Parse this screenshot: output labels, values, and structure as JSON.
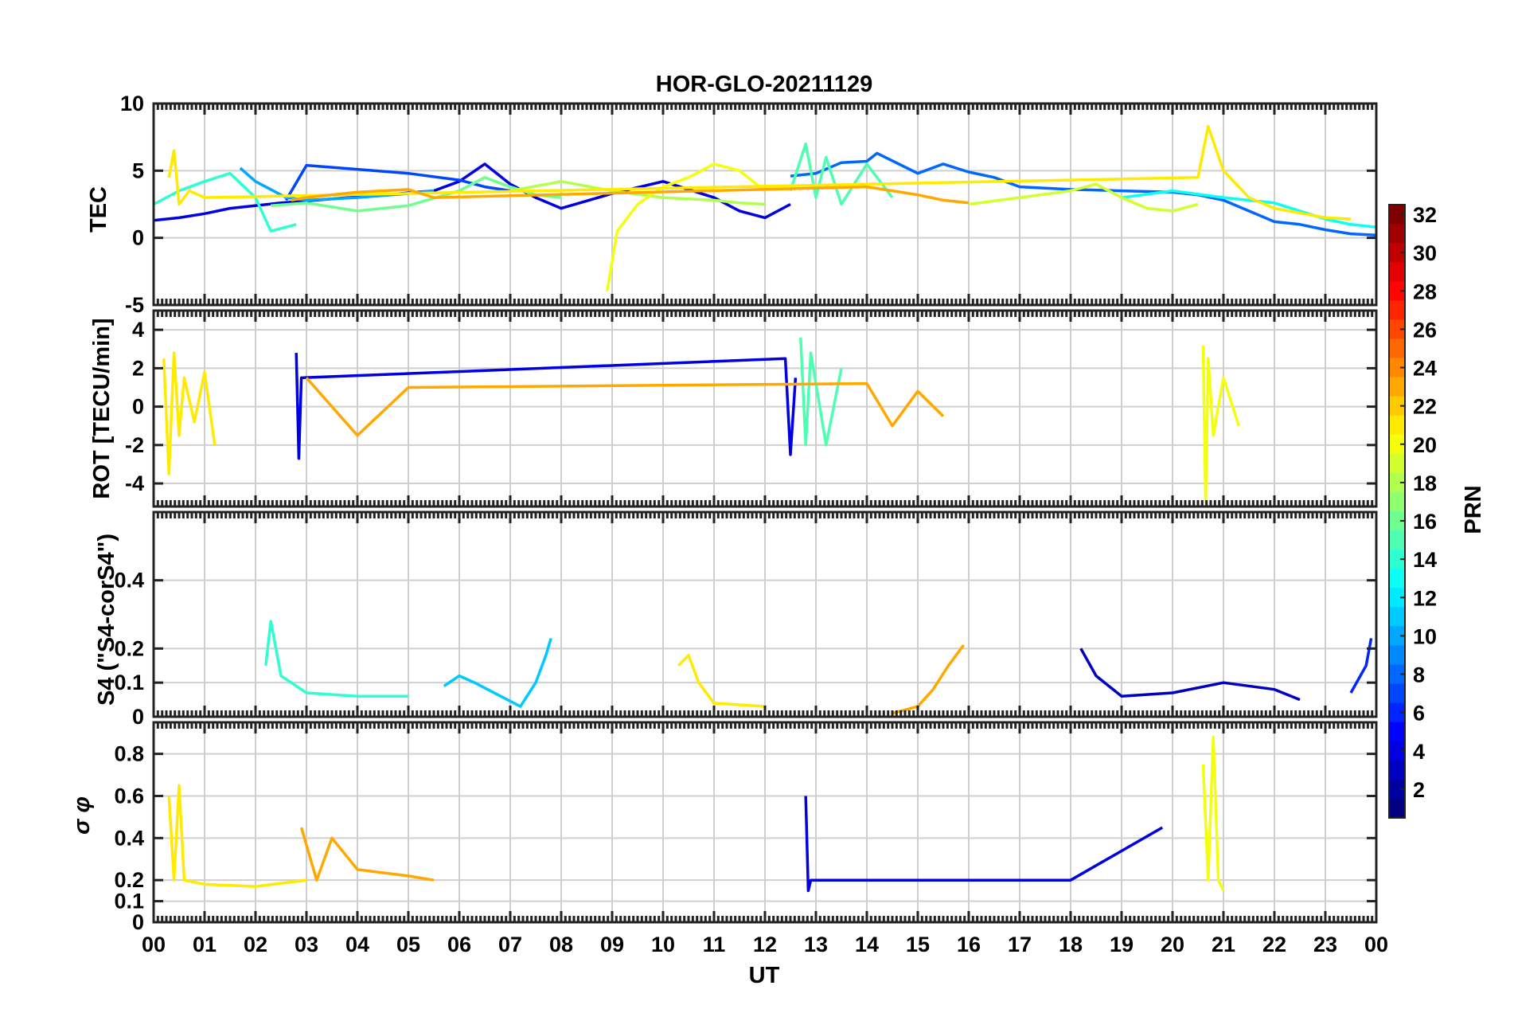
{
  "chart_data": [
    {
      "type": "line",
      "panel": "TEC",
      "title": "HOR-GLO-20211129",
      "ylabel": "TEC",
      "ylim": [
        -5,
        10
      ],
      "yticks": [
        10,
        5,
        0,
        -5
      ],
      "xlim": [
        0,
        24
      ],
      "grid": true,
      "series": [
        {
          "prn": 4,
          "x": [
            0,
            0.5,
            1,
            1.5,
            2.5,
            3.5,
            4.5,
            5.5,
            6,
            6.5,
            7,
            7.5,
            8,
            9,
            10,
            11,
            11.5,
            12,
            12.5
          ],
          "y": [
            1.3,
            1.5,
            1.8,
            2.2,
            2.6,
            2.9,
            3.2,
            3.5,
            4.2,
            5.5,
            4,
            3,
            2.2,
            3.3,
            4.2,
            3,
            2,
            1.5,
            2.5
          ]
        },
        {
          "prn": 7,
          "x": [
            2.6,
            3,
            4,
            5,
            6,
            6.5,
            7
          ],
          "y": [
            2.8,
            5.4,
            5.1,
            4.8,
            4.3,
            3.8,
            3.5
          ]
        },
        {
          "prn": 8,
          "x": [
            12.5,
            13,
            13.5,
            14,
            14.2,
            15,
            15.5,
            16,
            16.5,
            17,
            18,
            19,
            20,
            20.5,
            21,
            21.5,
            22,
            22.5,
            23,
            23.5,
            24
          ],
          "y": [
            4.6,
            4.8,
            5.6,
            5.7,
            6.3,
            4.8,
            5.5,
            4.9,
            4.5,
            3.8,
            3.6,
            3.5,
            3.4,
            3.2,
            2.8,
            2.0,
            1.2,
            1.0,
            0.6,
            0.3,
            0.2
          ]
        },
        {
          "prn": 10,
          "x": [
            1.7,
            2,
            2.6,
            3,
            4,
            5,
            5.5
          ],
          "y": [
            5.2,
            4.2,
            3.0,
            2.8,
            3.0,
            3.3,
            3.5
          ]
        },
        {
          "prn": 14,
          "x": [
            0,
            0.5,
            1,
            1.5,
            2,
            2.3,
            2.8
          ],
          "y": [
            2.5,
            3.5,
            4.2,
            4.8,
            3.0,
            0.5,
            1.0
          ]
        },
        {
          "prn": 13,
          "x": [
            19,
            20,
            21,
            22,
            22.5,
            23,
            23.5,
            24
          ],
          "y": [
            3.0,
            3.5,
            3.0,
            2.6,
            2.0,
            1.4,
            1.0,
            0.8
          ]
        },
        {
          "prn": 15,
          "x": [
            12.5,
            12.8,
            13,
            13.2,
            13.5,
            14,
            14.5
          ],
          "y": [
            3.5,
            7.0,
            3.0,
            6.0,
            2.5,
            5.5,
            3.0
          ]
        },
        {
          "prn": 16,
          "x": [
            2.3,
            3,
            4,
            5,
            6,
            6.5,
            7,
            7.5,
            8
          ],
          "y": [
            2.4,
            2.6,
            2.0,
            2.4,
            3.5,
            4.5,
            3.8,
            3.2,
            3.0
          ]
        },
        {
          "prn": 18,
          "x": [
            7,
            8,
            9,
            10,
            11,
            11.5,
            12
          ],
          "y": [
            3.5,
            4.2,
            3.5,
            3.0,
            2.8,
            2.6,
            2.5
          ]
        },
        {
          "prn": 19,
          "x": [
            16,
            17,
            18,
            18.5,
            19,
            19.5,
            20,
            20.5
          ],
          "y": [
            2.5,
            3.0,
            3.5,
            4.0,
            3.0,
            2.2,
            2.0,
            2.5
          ]
        },
        {
          "prn": 20,
          "x": [
            8.9,
            9.1,
            9.5,
            10,
            10.5,
            11,
            11.5,
            12
          ],
          "y": [
            -4.0,
            0.5,
            2.5,
            3.8,
            4.5,
            5.5,
            5.0,
            3.5
          ]
        },
        {
          "prn": 21,
          "x": [
            0.3,
            0.4,
            0.5,
            0.7,
            1.0,
            20.5,
            20.7,
            21,
            21.5,
            22,
            23,
            23.5
          ],
          "y": [
            4.5,
            6.5,
            2.5,
            3.5,
            3.0,
            4.5,
            8.3,
            5.0,
            3.0,
            2.2,
            1.5,
            1.4
          ]
        },
        {
          "prn": 23,
          "x": [
            2.7,
            3,
            4,
            5,
            5.5,
            14,
            14.5,
            15,
            15.5,
            16
          ],
          "y": [
            2.8,
            3.0,
            3.4,
            3.6,
            3.0,
            3.8,
            3.5,
            3.2,
            2.8,
            2.6
          ]
        }
      ]
    },
    {
      "type": "line",
      "panel": "ROT",
      "ylabel": "ROT [TECU/min]",
      "ylim": [
        -5.2,
        5
      ],
      "yticks": [
        4,
        2,
        0,
        -2,
        -4
      ],
      "xlim": [
        0,
        24
      ],
      "grid": true,
      "series": [
        {
          "prn": 21,
          "x": [
            0.2,
            0.3,
            0.4,
            0.5,
            0.6,
            0.8,
            1.0,
            1.2
          ],
          "y": [
            2.5,
            -3.5,
            2.8,
            -1.5,
            1.5,
            -0.8,
            1.8,
            -2.0
          ]
        },
        {
          "prn": 4,
          "x": [
            2.8,
            2.85,
            2.9,
            12.4,
            12.5,
            12.6
          ],
          "y": [
            2.8,
            -2.7,
            1.5,
            2.5,
            -2.5,
            1.5
          ]
        },
        {
          "prn": 15,
          "x": [
            12.7,
            12.8,
            12.9,
            13.2,
            13.5
          ],
          "y": [
            3.6,
            -2.0,
            2.8,
            -2.0,
            2.0
          ]
        },
        {
          "prn": 20,
          "x": [
            20.6,
            20.65,
            20.7,
            20.8,
            21.0,
            21.3
          ],
          "y": [
            3.2,
            -5.0,
            2.5,
            -1.5,
            1.5,
            -1.0
          ]
        },
        {
          "prn": 23,
          "x": [
            3,
            4,
            5,
            14,
            14.5,
            15,
            15.5
          ],
          "y": [
            1.5,
            -1.5,
            1.0,
            1.2,
            -1.0,
            0.8,
            -0.5
          ]
        }
      ]
    },
    {
      "type": "line",
      "panel": "S4",
      "ylabel": "S4 (\"S4-corS4\")",
      "ylim": [
        0,
        0.6
      ],
      "yticks": [
        0.4,
        0.2,
        0.1,
        0
      ],
      "xlim": [
        0,
        24
      ],
      "grid": true,
      "series": [
        {
          "prn": 14,
          "x": [
            2.2,
            2.3,
            2.5,
            3,
            4,
            5
          ],
          "y": [
            0.15,
            0.28,
            0.12,
            0.07,
            0.06,
            0.06
          ]
        },
        {
          "prn": 11,
          "x": [
            5.7,
            6,
            6.3,
            7.2,
            7.5,
            7.7,
            7.8
          ],
          "y": [
            0.09,
            0.12,
            0.1,
            0.03,
            0.1,
            0.18,
            0.23
          ]
        },
        {
          "prn": 21,
          "x": [
            10.3,
            10.5,
            10.7,
            11,
            12
          ],
          "y": [
            0.15,
            0.18,
            0.1,
            0.04,
            0.03
          ]
        },
        {
          "prn": 23,
          "x": [
            14.5,
            15,
            15.3,
            15.6,
            15.9
          ],
          "y": [
            0.01,
            0.03,
            0.08,
            0.15,
            0.21
          ]
        },
        {
          "prn": 3,
          "x": [
            18.2,
            18.5,
            19,
            20,
            21,
            22,
            22.5
          ],
          "y": [
            0.2,
            0.12,
            0.06,
            0.07,
            0.1,
            0.08,
            0.05
          ]
        },
        {
          "prn": 6,
          "x": [
            23.5,
            23.8,
            23.9
          ],
          "y": [
            0.07,
            0.15,
            0.23
          ]
        }
      ]
    },
    {
      "type": "line",
      "panel": "sigma_phi",
      "ylabel": "σ φ",
      "ylim": [
        0,
        0.95
      ],
      "yticks": [
        0.8,
        0.6,
        0.4,
        0.2,
        0.1,
        0
      ],
      "xlim": [
        0,
        24
      ],
      "grid": true,
      "series": [
        {
          "prn": 21,
          "x": [
            0.3,
            0.4,
            0.5,
            0.6,
            1,
            2,
            3
          ],
          "y": [
            0.6,
            0.2,
            0.65,
            0.2,
            0.18,
            0.17,
            0.2
          ]
        },
        {
          "prn": 23,
          "x": [
            2.9,
            3.2,
            3.5,
            4,
            5,
            5.5
          ],
          "y": [
            0.45,
            0.2,
            0.4,
            0.25,
            0.22,
            0.2
          ]
        },
        {
          "prn": 20,
          "x": [
            20.6,
            20.7,
            20.8,
            20.9,
            21.0
          ],
          "y": [
            0.75,
            0.2,
            0.88,
            0.2,
            0.15
          ]
        },
        {
          "prn": 4,
          "x": [
            12.8,
            12.85,
            12.9,
            18,
            19.8
          ],
          "y": [
            0.6,
            0.15,
            0.2,
            0.2,
            0.45
          ]
        }
      ]
    }
  ],
  "x_axis": {
    "label": "UT",
    "ticks": [
      "00",
      "01",
      "02",
      "03",
      "04",
      "05",
      "06",
      "07",
      "08",
      "09",
      "10",
      "11",
      "12",
      "13",
      "14",
      "15",
      "16",
      "17",
      "18",
      "19",
      "20",
      "21",
      "22",
      "23",
      "00"
    ]
  },
  "colorbar": {
    "label": "PRN",
    "colormap": "jet",
    "range": [
      1,
      32
    ],
    "ticks": [
      32,
      30,
      28,
      26,
      24,
      22,
      20,
      18,
      16,
      14,
      12,
      10,
      8,
      6,
      4,
      2
    ]
  }
}
